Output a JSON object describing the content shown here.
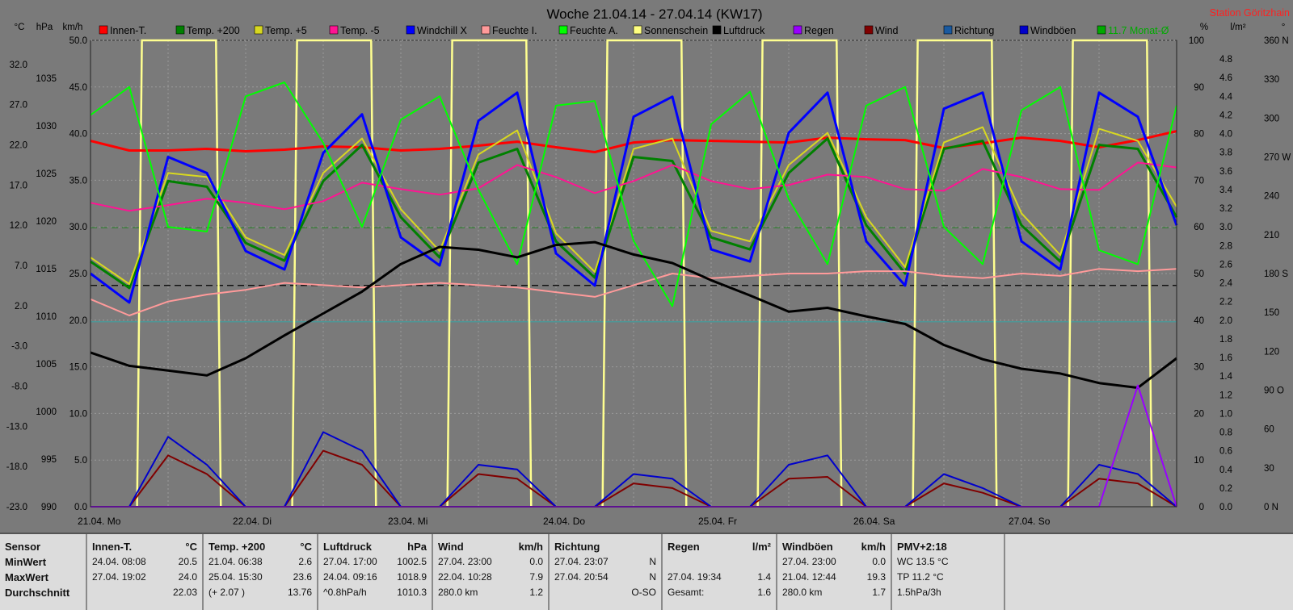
{
  "chart_data": {
    "type": "line",
    "title": "Woche 21.04.14 - 27.04.14 (KW17)",
    "station": "Station Göritzhain",
    "x_labels": [
      "21.04. Mo",
      "22.04. Di",
      "23.04. Mi",
      "24.04. Do",
      "25.04. Fr",
      "26.04. Sa",
      "27.04. So"
    ],
    "axes": {
      "temp_c": {
        "label": "°C",
        "ticks": [
          "32.0",
          "27.0",
          "22.0",
          "17.0",
          "12.0",
          "7.0",
          "2.0",
          "-3.0",
          "-8.0",
          "-13.0",
          "-18.0",
          "-23.0"
        ],
        "range": [
          -23,
          35
        ]
      },
      "pressure_hpa": {
        "label": "hPa",
        "ticks": [
          "1035",
          "1030",
          "1025",
          "1020",
          "1015",
          "1010",
          "1005",
          "1000",
          "995",
          "990"
        ],
        "range": [
          990,
          1039
        ]
      },
      "wind_kmh": {
        "label": "km/h",
        "ticks": [
          "50.0",
          "45.0",
          "40.0",
          "35.0",
          "30.0",
          "25.0",
          "20.0",
          "15.0",
          "10.0",
          "5.0",
          "0.0"
        ],
        "range": [
          0,
          50
        ]
      },
      "humidity_pct": {
        "label": "%",
        "ticks": [
          "100",
          "90",
          "80",
          "70",
          "60",
          "50",
          "40",
          "30",
          "20",
          "10",
          "0"
        ],
        "range": [
          0,
          100
        ]
      },
      "rain_lm2": {
        "label": "l/m²",
        "ticks": [
          "4.8",
          "4.6",
          "4.4",
          "4.2",
          "4.0",
          "3.8",
          "3.6",
          "3.4",
          "3.2",
          "3.0",
          "2.8",
          "2.6",
          "2.4",
          "2.2",
          "2.0",
          "1.8",
          "1.6",
          "1.4",
          "1.2",
          "1.0",
          "0.8",
          "0.6",
          "0.4",
          "0.2",
          "0.0"
        ],
        "range": [
          0,
          5
        ]
      },
      "direction_deg": {
        "label": "°",
        "ticks": [
          "360 N",
          "330",
          "300",
          "270 W",
          "240",
          "210",
          "180 S",
          "150",
          "120",
          "90 O",
          "60",
          "30",
          "0 N"
        ],
        "range": [
          0,
          360
        ]
      }
    },
    "legend": [
      {
        "name": "Innen-T.",
        "color": "#ff0000"
      },
      {
        "name": "Temp. +200",
        "color": "#008000"
      },
      {
        "name": "Temp. +5",
        "color": "#d8d820"
      },
      {
        "name": "Temp. -5",
        "color": "#ff1493"
      },
      {
        "name": "Windchill X",
        "color": "#0000ff"
      },
      {
        "name": "Feuchte I.",
        "color": "#ff9a9a"
      },
      {
        "name": "Feuchte A.",
        "color": "#00ff00"
      },
      {
        "name": "Sonnenschein",
        "color": "#ffff80"
      },
      {
        "name": "Luftdruck",
        "color": "#000000"
      },
      {
        "name": "Regen",
        "color": "#9900ff"
      },
      {
        "name": "Wind",
        "color": "#800000"
      },
      {
        "name": "Richtung",
        "color": "#1a5aa0"
      },
      {
        "name": "Windböen",
        "color": "#0000cc"
      },
      {
        "name": "11.7 Monat-Ø",
        "color": "#00aa00"
      }
    ],
    "reference_lines": [
      {
        "name": "11.7 Monat-Ø",
        "axis": "temp_c",
        "value": 11.7,
        "color": "#2a7a2a",
        "style": "dashed"
      },
      {
        "axis": "pressure_hpa",
        "value": 1013.25,
        "color": "#000000",
        "style": "dashed"
      },
      {
        "axis": "temp_c",
        "value": 0,
        "color": "#40a0a0",
        "style": "solid"
      }
    ],
    "series": [
      {
        "name": "Innen-T.",
        "axis": "temp_c",
        "values": [
          22.5,
          21.3,
          21.3,
          21.5,
          21.2,
          21.4,
          21.8,
          21.7,
          21.3,
          21.5,
          21.9,
          22.4,
          21.7,
          21.1,
          22.3,
          22.6,
          22.5,
          22.4,
          22.3,
          22.9,
          22.7,
          22.6,
          21.6,
          22.2,
          22.9,
          22.5,
          21.7,
          22.6,
          23.7
        ]
      },
      {
        "name": "Temp. +200",
        "axis": "temp_c",
        "values": [
          7.5,
          4.2,
          17.5,
          16.8,
          9.8,
          7.6,
          17.5,
          22.0,
          13.0,
          8.0,
          19.8,
          21.5,
          10.0,
          5.5,
          20.5,
          20.0,
          10.5,
          9.0,
          18.5,
          22.8,
          12.0,
          6.0,
          21.5,
          22.5,
          12.0,
          7.5,
          22.0,
          21.5,
          13.0
        ]
      },
      {
        "name": "Temp. +5",
        "axis": "temp_c",
        "values": [
          8.0,
          4.7,
          18.5,
          18.0,
          10.5,
          8.3,
          18.5,
          22.8,
          14.0,
          8.8,
          20.8,
          23.8,
          11.0,
          6.2,
          21.5,
          22.8,
          11.3,
          10.0,
          19.5,
          23.5,
          13.0,
          6.8,
          22.3,
          24.2,
          13.5,
          8.3,
          24.0,
          22.5,
          14.3
        ]
      },
      {
        "name": "Temp. -5",
        "axis": "temp_c",
        "values": [
          14.8,
          13.8,
          14.5,
          15.3,
          14.8,
          14.0,
          15.0,
          17.3,
          16.5,
          15.8,
          16.6,
          19.5,
          18.0,
          16.0,
          17.5,
          19.5,
          17.5,
          16.5,
          17.0,
          18.3,
          18.0,
          16.5,
          16.3,
          19.0,
          18.0,
          16.5,
          16.4,
          19.8,
          19.2
        ]
      },
      {
        "name": "Windchill X",
        "axis": "temp_c",
        "values": [
          6.0,
          2.4,
          20.5,
          18.5,
          8.8,
          6.5,
          21.0,
          25.8,
          10.5,
          7.0,
          25.0,
          28.5,
          8.5,
          4.5,
          25.5,
          28.0,
          9.0,
          7.5,
          23.5,
          28.5,
          10.0,
          4.5,
          26.5,
          28.5,
          10.0,
          6.5,
          28.5,
          25.5,
          12.0
        ]
      },
      {
        "name": "Feuchte I.",
        "axis": "humidity_pct",
        "values": [
          44.5,
          41,
          44,
          45.5,
          46.5,
          48,
          47.5,
          47,
          47.5,
          48,
          47.5,
          47,
          46,
          45,
          47.5,
          50,
          49,
          49.5,
          50,
          50,
          50.5,
          50.5,
          49.5,
          49,
          50,
          49.5,
          51,
          50.5,
          51
        ]
      },
      {
        "name": "Feuchte A.",
        "axis": "humidity_pct",
        "values": [
          84,
          90,
          60,
          59,
          88,
          91,
          78,
          60,
          83,
          88,
          68,
          52,
          86,
          87,
          57,
          43,
          82,
          89,
          66,
          52,
          86,
          90,
          60,
          52,
          85,
          90,
          55,
          52,
          86
        ]
      },
      {
        "name": "Luftdruck",
        "axis": "pressure_hpa",
        "values": [
          1006.2,
          1004.8,
          1004.3,
          1003.8,
          1005.6,
          1008.0,
          1010.3,
          1012.6,
          1015.5,
          1017.3,
          1017.0,
          1016.2,
          1017.5,
          1017.8,
          1016.5,
          1015.6,
          1013.8,
          1012.2,
          1010.5,
          1010.9,
          1010.0,
          1009.2,
          1007.0,
          1005.5,
          1004.5,
          1004.0,
          1003.0,
          1002.5,
          1005.6
        ]
      },
      {
        "name": "Wind",
        "axis": "wind_kmh",
        "values": [
          0,
          0,
          5.5,
          3.5,
          0,
          0,
          6.0,
          4.5,
          0,
          0,
          3.5,
          3.0,
          0,
          0,
          2.5,
          2.0,
          0,
          0,
          3.0,
          3.2,
          0,
          0,
          2.5,
          1.5,
          0,
          0,
          3.0,
          2.5,
          0
        ]
      },
      {
        "name": "Windböen",
        "axis": "wind_kmh",
        "values": [
          0,
          0,
          7.5,
          4.5,
          0,
          0,
          8.0,
          6.0,
          0,
          0,
          4.5,
          4.0,
          0,
          0,
          3.5,
          3.0,
          0,
          0,
          4.5,
          5.5,
          0,
          0,
          3.5,
          2.0,
          0,
          0,
          4.5,
          3.5,
          0
        ]
      },
      {
        "name": "Regen",
        "axis": "rain_lm2",
        "values": [
          0,
          0,
          0,
          0,
          0,
          0,
          0,
          0,
          0,
          0,
          0,
          0,
          0,
          0,
          0,
          0,
          0,
          0,
          0,
          0,
          0,
          0,
          0,
          0,
          0,
          0,
          0,
          1.3,
          0
        ]
      }
    ]
  },
  "stats": {
    "panels": [
      {
        "header": "Sensor",
        "unit": "",
        "rows": [
          [
            "MinWert",
            ""
          ],
          [
            "MaxWert",
            ""
          ],
          [
            "Durchschnitt",
            ""
          ]
        ]
      },
      {
        "header": "Innen-T.",
        "unit": "°C",
        "rows": [
          [
            "24.04. 08:08",
            "20.5"
          ],
          [
            "27.04. 19:02",
            "24.0"
          ],
          [
            "",
            "22.03"
          ]
        ]
      },
      {
        "header": "Temp. +200",
        "unit": "°C",
        "rows": [
          [
            "21.04. 06:38",
            "2.6"
          ],
          [
            "25.04. 15:30",
            "23.6"
          ],
          [
            "(+ 2.07 )",
            "13.76"
          ]
        ]
      },
      {
        "header": "Luftdruck",
        "unit": "hPa",
        "rows": [
          [
            "27.04. 17:00",
            "1002.5"
          ],
          [
            "24.04. 09:16",
            "1018.9"
          ],
          [
            "^0.8hPa/h",
            "1010.3"
          ]
        ]
      },
      {
        "header": "Wind",
        "unit": "km/h",
        "rows": [
          [
            "27.04. 23:00",
            "0.0"
          ],
          [
            "22.04. 10:28",
            "7.9"
          ],
          [
            "280.0 km",
            "1.2"
          ]
        ]
      },
      {
        "header": "Richtung",
        "unit": "",
        "rows": [
          [
            "27.04. 23:07",
            "N"
          ],
          [
            "27.04. 20:54",
            "N"
          ],
          [
            "",
            "O-SO"
          ]
        ]
      },
      {
        "header": "Regen",
        "unit": "l/m²",
        "rows": [
          [
            "",
            ""
          ],
          [
            "27.04. 19:34",
            "1.4"
          ],
          [
            "Gesamt:",
            "1.6"
          ]
        ]
      },
      {
        "header": "Windböen",
        "unit": "km/h",
        "rows": [
          [
            "27.04. 23:00",
            "0.0"
          ],
          [
            "21.04. 12:44",
            "19.3"
          ],
          [
            "280.0 km",
            "1.7"
          ]
        ]
      },
      {
        "header": "PMV+2:18",
        "unit": "",
        "rows": [
          [
            "WC 13.5 °C",
            ""
          ],
          [
            "TP 11.2 °C",
            ""
          ],
          [
            "1.5hPa/3h",
            ""
          ]
        ]
      }
    ]
  }
}
